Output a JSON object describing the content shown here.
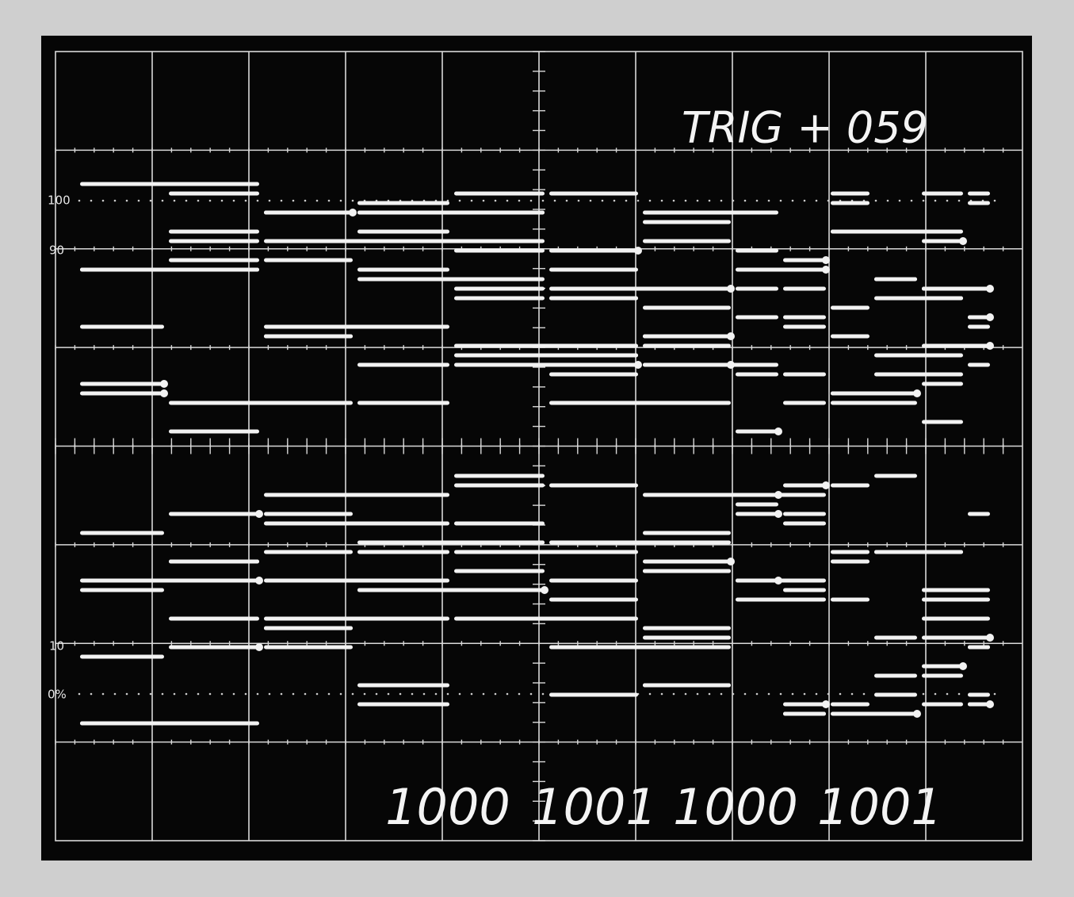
{
  "header": {
    "trigger": "TRIG + 059"
  },
  "scale_labels": [
    "100",
    "90",
    "10",
    "0%"
  ],
  "bit_labels": [
    "1000",
    "1001",
    "1000",
    "1001"
  ]
}
